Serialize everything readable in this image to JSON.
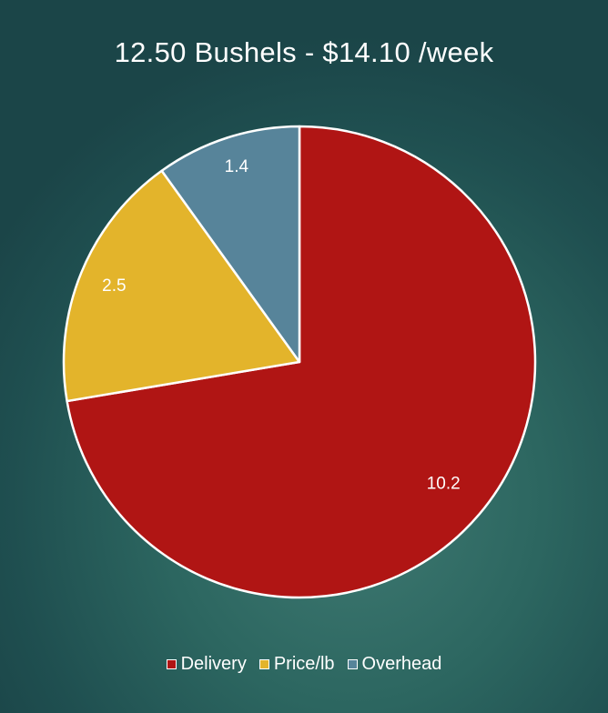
{
  "chart_data": {
    "type": "pie",
    "title": "12.50 Bushels - $14.10 /week",
    "categories": [
      "Delivery",
      "Price/lb",
      "Overhead"
    ],
    "values": [
      10.2,
      2.5,
      1.4
    ],
    "data_labels": [
      "10.2",
      "2.5",
      "1.4"
    ],
    "colors": [
      "#b01514",
      "#e3b42b",
      "#57849a"
    ],
    "start_angle": "12 o'clock",
    "direction": "clockwise",
    "legend_position": "bottom",
    "grid": false
  }
}
